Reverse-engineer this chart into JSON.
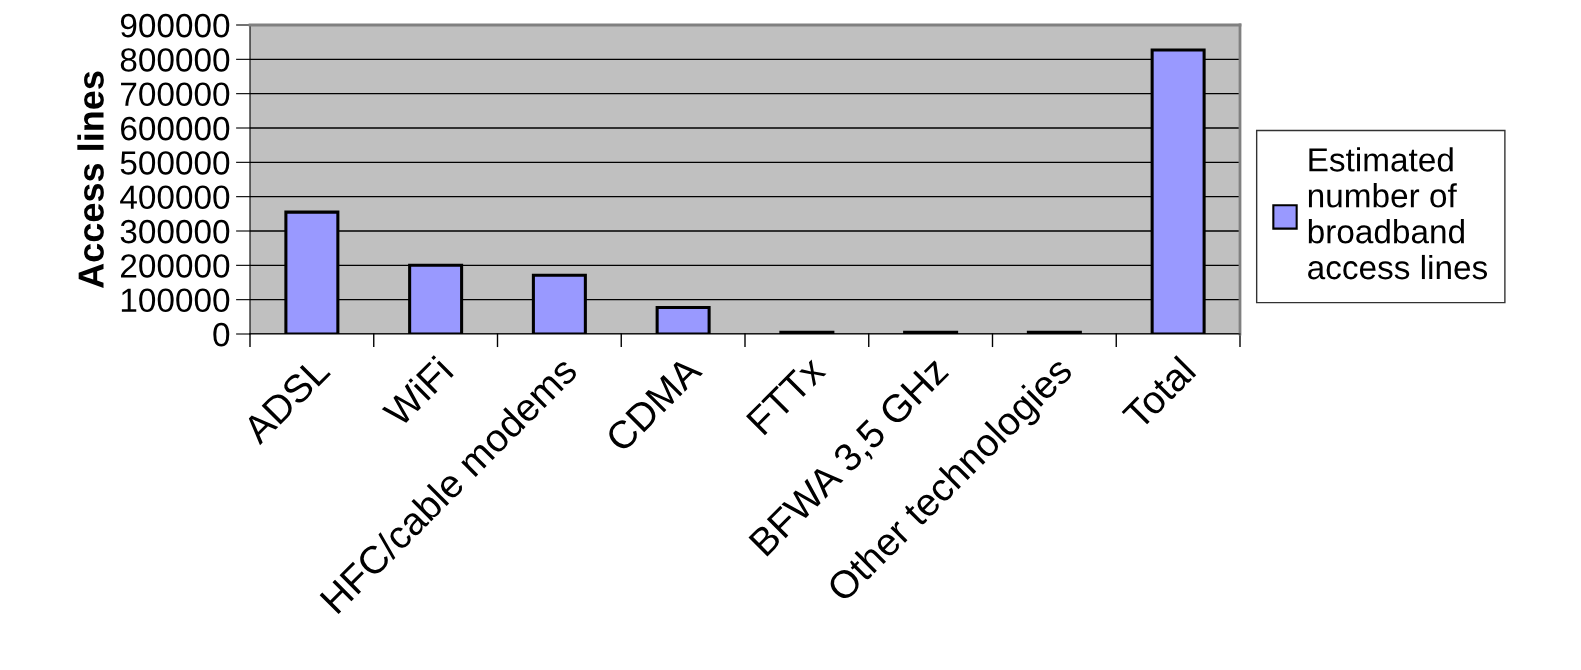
{
  "chart_data": {
    "type": "bar",
    "ylabel": "Access lines",
    "categories": [
      "ADSL",
      "WiFi",
      "HFC/cable modems",
      "CDMA",
      "FTTx",
      "BFWA 3,5 GHz",
      "Other technologies",
      "Total"
    ],
    "series": [
      {
        "name": "Estimated\nnumber of\nbroadband\naccess lines",
        "color": "#9999ff",
        "values": [
          355000,
          200000,
          171000,
          77000,
          5000,
          5000,
          5000,
          827000
        ]
      }
    ],
    "ylim": [
      0,
      900000
    ],
    "yticks": [
      0,
      100000,
      200000,
      300000,
      400000,
      500000,
      600000,
      700000,
      800000,
      900000
    ],
    "grid": "y",
    "legend": "right"
  }
}
